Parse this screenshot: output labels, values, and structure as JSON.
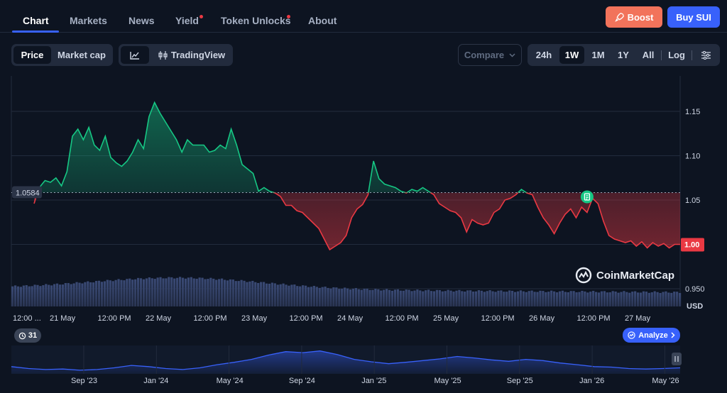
{
  "nav": {
    "tabs": [
      "Chart",
      "Markets",
      "News",
      "Yield",
      "Token Unlocks",
      "About"
    ],
    "active_tab": "Chart",
    "boost_label": "Boost",
    "buy_label": "Buy SUI"
  },
  "toolbar": {
    "price_label": "Price",
    "marketcap_label": "Market cap",
    "tradingview_label": "TradingView",
    "compare_label": "Compare",
    "ranges": [
      "24h",
      "1W",
      "1M",
      "1Y",
      "All"
    ],
    "selected_range": "1W",
    "log_label": "Log"
  },
  "chart_data": {
    "type": "area",
    "currency_label": "USD",
    "y_ticks": [
      0.95,
      1.0,
      1.05,
      1.1,
      1.15
    ],
    "y_tick_labels": [
      "0.950",
      "1.00",
      "1.05",
      "1.10",
      "1.15"
    ],
    "ylim": [
      0.93,
      1.19
    ],
    "x_tick_labels": [
      "12:00 ...",
      "21 May",
      "12:00 PM",
      "22 May",
      "12:00 PM",
      "23 May",
      "12:00 PM",
      "24 May",
      "12:00 PM",
      "25 May",
      "12:00 PM",
      "26 May",
      "12:00 PM",
      "27 May"
    ],
    "baseline_value": 1.0584,
    "baseline_label": "1.0584",
    "current_value": 1.0,
    "current_label": "1.00",
    "colors": {
      "up": "#16c784",
      "down": "#ea3943",
      "accent": "#3861fb"
    },
    "price_points": [
      [
        0,
        1.046
      ],
      [
        0.6,
        1.058
      ],
      [
        1.2,
        1.066
      ],
      [
        2,
        1.072
      ],
      [
        3,
        1.07
      ],
      [
        4,
        1.075
      ],
      [
        5,
        1.066
      ],
      [
        6,
        1.082
      ],
      [
        7,
        1.122
      ],
      [
        8,
        1.13
      ],
      [
        9,
        1.118
      ],
      [
        10,
        1.132
      ],
      [
        11,
        1.112
      ],
      [
        12,
        1.106
      ],
      [
        13,
        1.122
      ],
      [
        14,
        1.098
      ],
      [
        15,
        1.092
      ],
      [
        16,
        1.088
      ],
      [
        17,
        1.094
      ],
      [
        18,
        1.104
      ],
      [
        19,
        1.118
      ],
      [
        20,
        1.108
      ],
      [
        21,
        1.144
      ],
      [
        22,
        1.16
      ],
      [
        23,
        1.148
      ],
      [
        24,
        1.138
      ],
      [
        25,
        1.128
      ],
      [
        26,
        1.118
      ],
      [
        27,
        1.104
      ],
      [
        28,
        1.118
      ],
      [
        29,
        1.112
      ],
      [
        30,
        1.112
      ],
      [
        31,
        1.112
      ],
      [
        32,
        1.104
      ],
      [
        33,
        1.106
      ],
      [
        34,
        1.112
      ],
      [
        35,
        1.108
      ],
      [
        36,
        1.13
      ],
      [
        37,
        1.112
      ],
      [
        38,
        1.09
      ],
      [
        39,
        1.085
      ],
      [
        40,
        1.08
      ],
      [
        41,
        1.06
      ],
      [
        42,
        1.064
      ],
      [
        43,
        1.06
      ],
      [
        44,
        1.058
      ],
      [
        45,
        1.054
      ],
      [
        46,
        1.044
      ],
      [
        47,
        1.044
      ],
      [
        48,
        1.038
      ],
      [
        49,
        1.036
      ],
      [
        50,
        1.03
      ],
      [
        51,
        1.024
      ],
      [
        52,
        1.018
      ],
      [
        53,
        1.006
      ],
      [
        54,
        0.994
      ],
      [
        55,
        0.998
      ],
      [
        56,
        1.002
      ],
      [
        57,
        1.01
      ],
      [
        58,
        1.03
      ],
      [
        59,
        1.04
      ],
      [
        60,
        1.045
      ],
      [
        61,
        1.056
      ],
      [
        62,
        1.094
      ],
      [
        63,
        1.074
      ],
      [
        64,
        1.068
      ],
      [
        65,
        1.066
      ],
      [
        66,
        1.064
      ],
      [
        67,
        1.06
      ],
      [
        68,
        1.058
      ],
      [
        69,
        1.062
      ],
      [
        70,
        1.06
      ],
      [
        71,
        1.064
      ],
      [
        72,
        1.06
      ],
      [
        73,
        1.056
      ],
      [
        74,
        1.046
      ],
      [
        75,
        1.042
      ],
      [
        76,
        1.038
      ],
      [
        77,
        1.036
      ],
      [
        78,
        1.03
      ],
      [
        79,
        1.014
      ],
      [
        80,
        1.028
      ],
      [
        81,
        1.024
      ],
      [
        82,
        1.022
      ],
      [
        83,
        1.024
      ],
      [
        84,
        1.036
      ],
      [
        85,
        1.04
      ],
      [
        86,
        1.05
      ],
      [
        87,
        1.052
      ],
      [
        88,
        1.056
      ],
      [
        89,
        1.062
      ],
      [
        90,
        1.058
      ],
      [
        91,
        1.056
      ],
      [
        92,
        1.042
      ],
      [
        93,
        1.03
      ],
      [
        94,
        1.022
      ],
      [
        95,
        1.012
      ],
      [
        96,
        1.024
      ],
      [
        97,
        1.034
      ],
      [
        98,
        1.04
      ],
      [
        99,
        1.03
      ],
      [
        100,
        1.042
      ],
      [
        101,
        1.036
      ],
      [
        102,
        1.052
      ],
      [
        103,
        1.046
      ],
      [
        104,
        1.026
      ],
      [
        105,
        1.01
      ],
      [
        106,
        1.006
      ],
      [
        107,
        1.004
      ],
      [
        108,
        1.002
      ],
      [
        109,
        1.004
      ],
      [
        110,
        0.998
      ],
      [
        111,
        1.003
      ],
      [
        112,
        0.996
      ],
      [
        113,
        1.002
      ],
      [
        114,
        0.998
      ],
      [
        115,
        1.001
      ],
      [
        116,
        0.996
      ],
      [
        117,
        1.0
      ],
      [
        118,
        1.0
      ]
    ],
    "overview": {
      "x_tick_labels": [
        "Sep '23",
        "Jan '24",
        "May '24",
        "Sep '24",
        "Jan '25",
        "May '25",
        "Sep '25",
        "Jan '26",
        "May '26"
      ],
      "history_range_label": "31",
      "analyze_label": "Analyze"
    },
    "watermark": "CoinMarketCap"
  }
}
